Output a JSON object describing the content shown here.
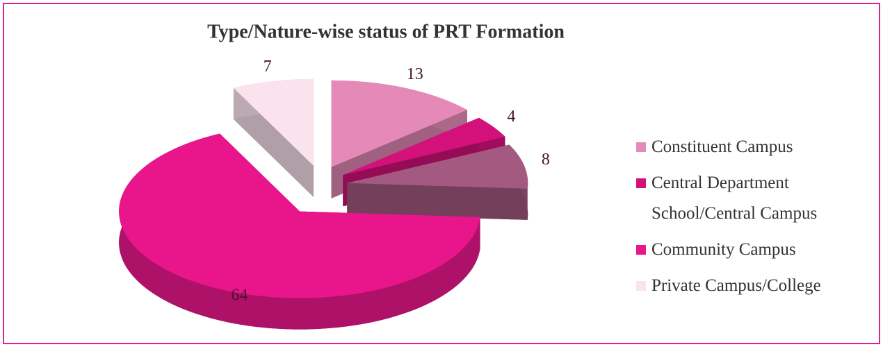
{
  "chart_data": {
    "type": "pie",
    "title": "Type/Nature-wise status of PRT Formation",
    "categories": [
      "Constituent Campus",
      "Central Department School/Central Campus",
      null,
      "Community Campus",
      "Private Campus/College"
    ],
    "values": [
      13,
      4,
      8,
      64,
      7
    ],
    "colors": [
      "#e58ab8",
      "#d4117a",
      "#a45a80",
      "#e8168a",
      "#fbe3ee"
    ],
    "legend": "right"
  }
}
